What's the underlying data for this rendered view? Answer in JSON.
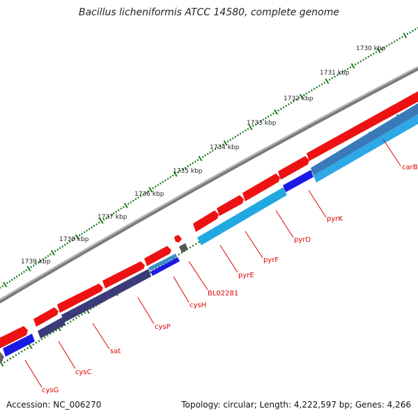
{
  "title": "Bacillus licheniformis ATCC 14580, complete genome",
  "footer": {
    "accession": "Accession: NC_006270",
    "topology": "Topology: circular; Length: 4,222,597 bp; Genes: 4,266"
  },
  "colors": {
    "forward_cds": "#ee1111",
    "reverse_cds": "#1a1ae6",
    "operon_dark": "#3b3b7a",
    "operon_light": "#2ea8e6",
    "backbone": "#888888",
    "gene_label": "#dd0000",
    "tick": "#1a7a1a"
  },
  "scale_labels": [
    "1730 kbp",
    "1731 kbp",
    "1732 kbp",
    "1733 kbp",
    "1734 kbp",
    "1735 kbp",
    "1736 kbp",
    "1737 kbp",
    "1738 kbp",
    "1739 kbp"
  ],
  "genes": [
    "carB",
    "pyrK",
    "pyrD",
    "pyrF",
    "pyrE",
    "BL02281",
    "cysH",
    "cysP",
    "sat",
    "cysC",
    "cysG"
  ]
}
